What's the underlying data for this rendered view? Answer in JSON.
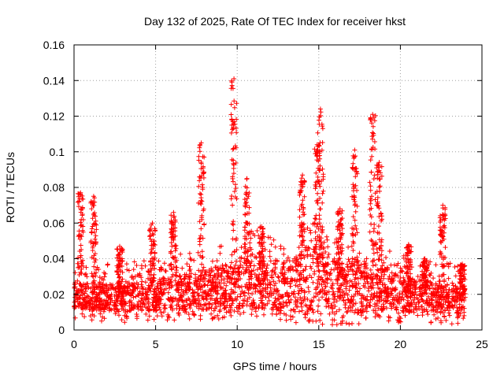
{
  "chart_data": {
    "type": "scatter",
    "title": "Day 132 of 2025, Rate Of TEC Index for receiver hkst",
    "xlabel": "GPS time / hours",
    "ylabel": "ROTI / TECUs",
    "xlim": [
      0,
      25
    ],
    "ylim": [
      0,
      0.16
    ],
    "x_ticks": [
      0,
      5,
      10,
      15,
      20,
      25
    ],
    "x_tick_labels": [
      "0",
      "5",
      "10",
      "15",
      "20",
      "25"
    ],
    "y_ticks": [
      0,
      0.02,
      0.04,
      0.06,
      0.08,
      0.1,
      0.12,
      0.14,
      0.16
    ],
    "y_tick_labels": [
      "0",
      "0.02",
      "0.04",
      "0.06",
      "0.08",
      "0.1",
      "0.12",
      "0.14",
      "0.16"
    ],
    "grid": true,
    "marker": "plus",
    "color": "#ff0000",
    "x_data_range": [
      0,
      24
    ],
    "baseline_envelope": [
      {
        "x": 0,
        "low": 0.012,
        "high": 0.026
      },
      {
        "x": 3,
        "low": 0.01,
        "high": 0.026
      },
      {
        "x": 6,
        "low": 0.011,
        "high": 0.03
      },
      {
        "x": 9,
        "low": 0.012,
        "high": 0.036
      },
      {
        "x": 11,
        "low": 0.012,
        "high": 0.045
      },
      {
        "x": 13,
        "low": 0.01,
        "high": 0.035
      },
      {
        "x": 14.5,
        "low": 0.01,
        "high": 0.05
      },
      {
        "x": 16,
        "low": 0.008,
        "high": 0.04
      },
      {
        "x": 18,
        "low": 0.01,
        "high": 0.04
      },
      {
        "x": 20,
        "low": 0.01,
        "high": 0.03
      },
      {
        "x": 24,
        "low": 0.009,
        "high": 0.024
      }
    ],
    "spikes": [
      {
        "x": 0.4,
        "peak": 0.077
      },
      {
        "x": 1.2,
        "peak": 0.075
      },
      {
        "x": 2.8,
        "peak": 0.047
      },
      {
        "x": 4.8,
        "peak": 0.06
      },
      {
        "x": 6.1,
        "peak": 0.066
      },
      {
        "x": 7.8,
        "peak": 0.105
      },
      {
        "x": 9.8,
        "peak": 0.141
      },
      {
        "x": 10.6,
        "peak": 0.085
      },
      {
        "x": 11.5,
        "peak": 0.058
      },
      {
        "x": 14.0,
        "peak": 0.087
      },
      {
        "x": 14.9,
        "peak": 0.104
      },
      {
        "x": 15.1,
        "peak": 0.124
      },
      {
        "x": 16.3,
        "peak": 0.068
      },
      {
        "x": 17.2,
        "peak": 0.101
      },
      {
        "x": 18.3,
        "peak": 0.121
      },
      {
        "x": 18.7,
        "peak": 0.094
      },
      {
        "x": 20.5,
        "peak": 0.048
      },
      {
        "x": 21.5,
        "peak": 0.04
      },
      {
        "x": 22.6,
        "peak": 0.07
      },
      {
        "x": 23.8,
        "peak": 0.037
      }
    ]
  }
}
